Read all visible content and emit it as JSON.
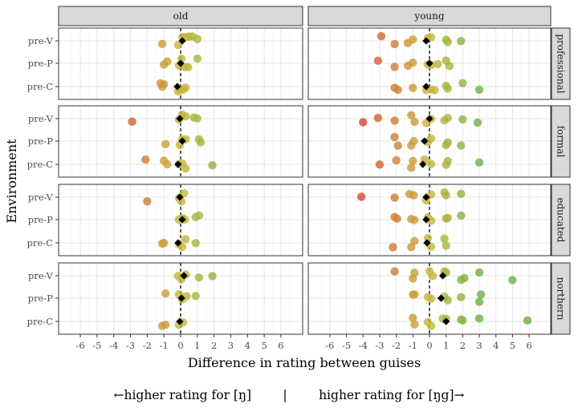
{
  "chart_data": {
    "type": "scatter",
    "facet_columns": [
      "old",
      "young"
    ],
    "facet_rows": [
      "professional",
      "formal",
      "educated",
      "northern"
    ],
    "categories": [
      "pre-V",
      "pre-P",
      "pre-C"
    ],
    "xlabel": "Difference in rating between guises",
    "ylabel": "Environment",
    "x_ticks": [
      "-6",
      "-5",
      "-4",
      "-3",
      "-2",
      "-1",
      "0",
      "1",
      "2",
      "3",
      "4",
      "5",
      "6"
    ],
    "xlim": [
      -7.3,
      7.3
    ],
    "reference_line_x": 0,
    "grid": true,
    "color_scale": {
      "low": "#d9442f",
      "mid": "#c8b834",
      "high": "#6fb048"
    },
    "mean_marker": "black diamond",
    "panels": [
      {
        "column": "old",
        "row": "professional",
        "points": {
          "pre-V": [
            -1.1,
            -0.15,
            0.1,
            0.3,
            0.5,
            0.7,
            1.0
          ],
          "pre-P": [
            -1.0,
            -0.8,
            -0.1,
            0.05,
            0.25,
            0.45,
            1.0
          ],
          "pre-C": [
            -1.2,
            -1.1,
            -1.0,
            -0.15,
            0.0,
            0.15,
            0.3
          ]
        },
        "means": {
          "pre-V": 0.1,
          "pre-P": 0.0,
          "pre-C": -0.2
        }
      },
      {
        "column": "old",
        "row": "formal",
        "points": {
          "pre-V": [
            -2.9,
            -0.1,
            0.1,
            0.3,
            0.8,
            1.0
          ],
          "pre-P": [
            -0.9,
            -0.05,
            0.1,
            0.3,
            1.1,
            1.2
          ],
          "pre-C": [
            -2.1,
            -1.0,
            -0.8,
            -0.1,
            0.1,
            0.3,
            1.9
          ]
        },
        "means": {
          "pre-V": -0.05,
          "pre-P": 0.1,
          "pre-C": -0.15
        }
      },
      {
        "column": "old",
        "row": "educated",
        "points": {
          "pre-V": [
            -2.0,
            -0.1,
            0.05,
            0.2
          ],
          "pre-P": [
            -0.1,
            0.1,
            0.25,
            0.9,
            1.1
          ],
          "pre-C": [
            -1.1,
            -1.0,
            -0.1,
            0.1,
            0.3,
            0.9
          ]
        },
        "means": {
          "pre-V": -0.05,
          "pre-P": 0.1,
          "pre-C": -0.15
        }
      },
      {
        "column": "old",
        "row": "northern",
        "points": {
          "pre-V": [
            -0.15,
            0.05,
            0.3,
            1.1,
            1.9
          ],
          "pre-P": [
            -0.9,
            -0.1,
            0.1,
            0.35,
            0.9
          ],
          "pre-C": [
            -1.1,
            -0.9,
            -0.1,
            0.15
          ]
        },
        "means": {
          "pre-V": 0.2,
          "pre-P": 0.05,
          "pre-C": -0.05
        }
      },
      {
        "column": "young",
        "row": "professional",
        "points": {
          "pre-V": [
            -2.9,
            -2.1,
            -1.3,
            -1.0,
            -0.1,
            0.1,
            1.0,
            1.1,
            1.9
          ],
          "pre-P": [
            -3.1,
            -2.1,
            -1.3,
            -1.0,
            -0.1,
            0.1,
            0.5,
            1.0,
            1.2
          ],
          "pre-C": [
            -2.1,
            -1.9,
            -1.0,
            -0.2,
            0.1,
            0.3,
            1.0,
            1.1,
            2.0,
            3.0
          ]
        },
        "means": {
          "pre-V": -0.2,
          "pre-P": 0.0,
          "pre-C": -0.2
        }
      },
      {
        "column": "young",
        "row": "formal",
        "points": {
          "pre-V": [
            -4.0,
            -3.1,
            -2.1,
            -1.1,
            -0.9,
            -0.2,
            0.1,
            0.9,
            1.1,
            2.0,
            2.9
          ],
          "pre-P": [
            -2.1,
            -1.9,
            -1.1,
            -0.95,
            -0.1,
            0.1,
            1.0,
            1.1,
            1.9
          ],
          "pre-C": [
            -3.0,
            -2.0,
            -1.1,
            -1.0,
            -0.3,
            0.1,
            1.0,
            1.1,
            3.0
          ]
        },
        "means": {
          "pre-V": 0.0,
          "pre-P": -0.3,
          "pre-C": -0.4
        }
      },
      {
        "column": "young",
        "row": "educated",
        "points": {
          "pre-V": [
            -4.1,
            -2.1,
            -1.2,
            -0.95,
            -0.2,
            0.1,
            0.9,
            1.0,
            1.9
          ],
          "pre-P": [
            -2.1,
            -1.95,
            -1.1,
            -0.9,
            -0.1,
            0.1,
            1.0,
            1.1,
            1.9
          ],
          "pre-C": [
            -2.2,
            -1.1,
            -0.9,
            -0.1,
            0.1,
            0.9,
            1.0
          ]
        },
        "means": {
          "pre-V": -0.2,
          "pre-P": -0.2,
          "pre-C": -0.15
        }
      },
      {
        "column": "young",
        "row": "northern",
        "points": {
          "pre-V": [
            -2.1,
            -1.0,
            -0.9,
            0.0,
            0.2,
            0.9,
            1.0,
            1.9,
            2.1,
            3.0,
            5.0
          ],
          "pre-P": [
            -1.0,
            -0.9,
            -0.1,
            0.1,
            0.9,
            1.1,
            1.9,
            3.0,
            3.1
          ],
          "pre-C": [
            -1.0,
            -0.9,
            -0.1,
            0.1,
            0.8,
            1.0,
            1.9,
            2.0,
            3.0,
            5.9
          ]
        },
        "means": {
          "pre-V": 0.8,
          "pre-P": 0.7,
          "pre-C": 1.0
        }
      }
    ]
  },
  "caption": {
    "left": "←higher rating for [ŋ]",
    "separator": "|",
    "right": "higher rating for [ŋg]→"
  }
}
